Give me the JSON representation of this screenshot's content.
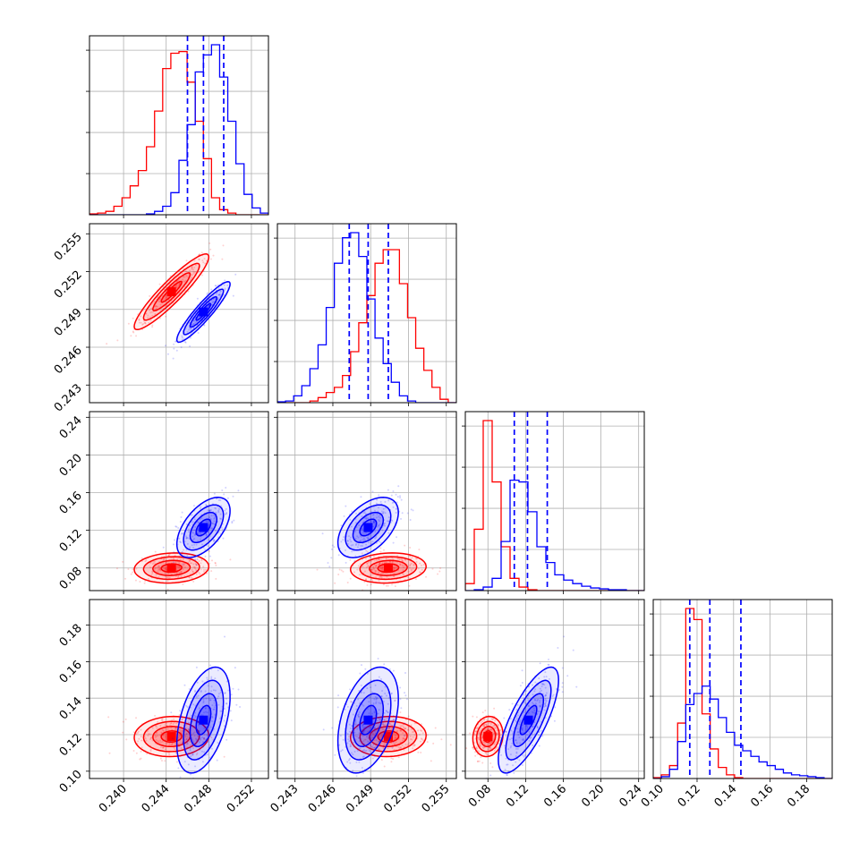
{
  "figure": {
    "type": "corner-plot",
    "colors": {
      "red_series": "#ff0000",
      "blue_series": "#0000ff",
      "grid": "#b0b0b0",
      "axis": "#000000"
    }
  },
  "chart_data": {
    "type": "corner",
    "params": [
      {
        "xlim": [
          0.2368,
          0.2536
        ],
        "ticks": [
          0.24,
          0.244,
          0.248,
          0.252
        ],
        "labels": [
          "0.240",
          "0.244",
          "0.248",
          "0.252"
        ]
      },
      {
        "xlim": [
          0.2416,
          0.2558
        ],
        "ticks": [
          0.243,
          0.246,
          0.249,
          0.252,
          0.255
        ],
        "labels": [
          "0.243",
          "0.246",
          "0.249",
          "0.252",
          "0.255"
        ]
      },
      {
        "xlim": [
          0.056,
          0.246
        ],
        "ticks": [
          0.08,
          0.12,
          0.16,
          0.2,
          0.24
        ],
        "labels": [
          "0.08",
          "0.12",
          "0.16",
          "0.20",
          "0.24"
        ]
      },
      {
        "xlim": [
          0.096,
          0.194
        ],
        "ticks": [
          0.1,
          0.12,
          0.14,
          0.16,
          0.18
        ],
        "labels": [
          "0.10",
          "0.12",
          "0.14",
          "0.16",
          "0.18"
        ]
      }
    ],
    "series": [
      {
        "color": "#ff0000",
        "mean": [
          0.2445,
          0.2504,
          0.08,
          0.119
        ],
        "sd": [
          0.00175,
          0.0015,
          0.008,
          0.0055
        ],
        "corr": [
          [
            1,
            0.92,
            0.1,
            0.05
          ],
          [
            0.92,
            1,
            0.1,
            0.05
          ],
          [
            0.1,
            0.1,
            1,
            0.1
          ],
          [
            0.05,
            0.05,
            0.1,
            1
          ]
        ]
      },
      {
        "color": "#0000ff",
        "mean": [
          0.2475,
          0.2488,
          0.123,
          0.128
        ],
        "sd": [
          0.00125,
          0.0012,
          0.016,
          0.0145
        ],
        "corr": [
          [
            1,
            0.92,
            0.55,
            0.45
          ],
          [
            0.92,
            1,
            0.5,
            0.4
          ],
          [
            0.55,
            0.5,
            1,
            0.75
          ],
          [
            0.45,
            0.4,
            0.75,
            1
          ]
        ]
      }
    ],
    "quantile_lines": {
      "color": "#0000ff",
      "values": [
        [
          0.246,
          0.2475,
          0.2494
        ],
        [
          0.2473,
          0.2488,
          0.2504
        ],
        [
          0.108,
          0.122,
          0.143
        ],
        [
          0.116,
          0.127,
          0.144
        ]
      ]
    },
    "histograms": [
      {
        "bins": 22,
        "red": [
          0.005,
          0.01,
          0.02,
          0.05,
          0.1,
          0.17,
          0.26,
          0.4,
          0.61,
          0.86,
          0.95,
          0.96,
          0.78,
          0.55,
          0.33,
          0.1,
          0.03,
          0.01,
          0,
          0,
          0,
          0
        ],
        "blue": [
          0,
          0,
          0,
          0,
          0,
          0,
          0,
          0.005,
          0.02,
          0.05,
          0.13,
          0.32,
          0.53,
          0.84,
          0.94,
          1.0,
          0.81,
          0.55,
          0.3,
          0.12,
          0.04,
          0.01
        ]
      },
      {
        "bins": 22,
        "red": [
          0,
          0,
          0,
          0,
          0.01,
          0.03,
          0.06,
          0.09,
          0.16,
          0.3,
          0.47,
          0.63,
          0.82,
          0.9,
          0.9,
          0.7,
          0.5,
          0.32,
          0.19,
          0.09,
          0.02,
          0
        ],
        "blue": [
          0.005,
          0.01,
          0.04,
          0.1,
          0.2,
          0.34,
          0.56,
          0.82,
          0.97,
          1.0,
          0.86,
          0.61,
          0.38,
          0.23,
          0.12,
          0.04,
          0.01,
          0,
          0,
          0,
          0,
          0
        ]
      },
      {
        "bins": 20,
        "red": [
          0.04,
          0.35,
          0.97,
          0.62,
          0.25,
          0.07,
          0.02,
          0.005,
          0,
          0,
          0,
          0,
          0,
          0,
          0,
          0,
          0,
          0,
          0,
          0
        ],
        "blue": [
          0,
          0.005,
          0.02,
          0.07,
          0.28,
          0.63,
          0.62,
          0.45,
          0.25,
          0.16,
          0.09,
          0.06,
          0.04,
          0.025,
          0.015,
          0.01,
          0.005,
          0.005,
          0,
          0
        ]
      },
      {
        "bins": 22,
        "red": [
          0.005,
          0.02,
          0.07,
          0.3,
          0.92,
          0.86,
          0.35,
          0.16,
          0.06,
          0.02,
          0.005,
          0,
          0,
          0,
          0,
          0,
          0,
          0,
          0,
          0,
          0,
          0
        ],
        "blue": [
          0,
          0.01,
          0.05,
          0.2,
          0.4,
          0.46,
          0.5,
          0.43,
          0.33,
          0.25,
          0.18,
          0.15,
          0.12,
          0.09,
          0.07,
          0.05,
          0.03,
          0.02,
          0.015,
          0.01,
          0.005,
          0
        ]
      }
    ]
  }
}
